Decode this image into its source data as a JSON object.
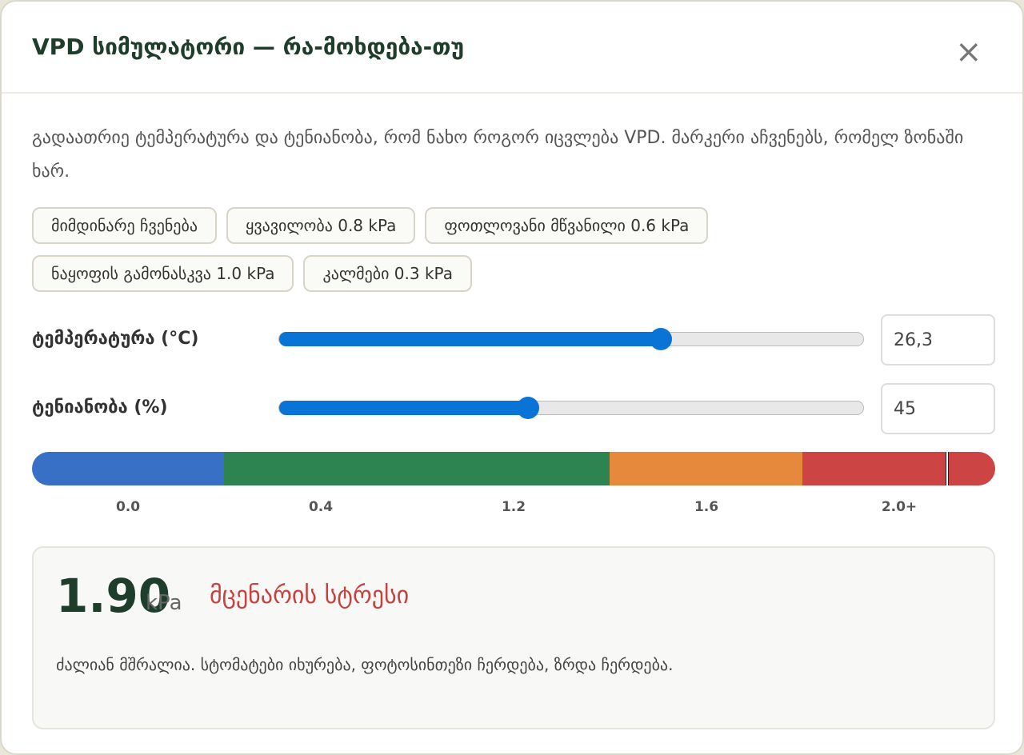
{
  "header": {
    "title": "VPD სიმულატორი — რა-მოხდება-თუ",
    "close": "×"
  },
  "description": "გადაათრიე ტემპერატურა და ტენიანობა, რომ ნახო როგორ იცვლება VPD. მარკერი აჩვენებს, რომელ ზონაში ხარ.",
  "presets": [
    "მიმდინარე ჩვენება",
    "ყვავილობა 0.8 kPa",
    "ფოთლოვანი მწვანილი 0.6 kPa",
    "ნაყოფის გამონასკვა 1.0 kPa",
    "კალმები 0.3 kPa"
  ],
  "sliders": [
    {
      "label": "ტემპერატურა (°C)",
      "value": "26,3"
    },
    {
      "label": "ტენიანობა (%)",
      "value": "45"
    }
  ],
  "zone_labels": [
    "0.0",
    "0.4",
    "1.2",
    "1.6",
    "2.0+"
  ],
  "result": {
    "value": "1.90",
    "unit": "kPa",
    "status": "მცენარის სტრესი",
    "note": "ძალიან მშრალია. სტომატები იხურება, ფოტოსინთეზი ჩერდება, ზრდა ჩერდება."
  }
}
